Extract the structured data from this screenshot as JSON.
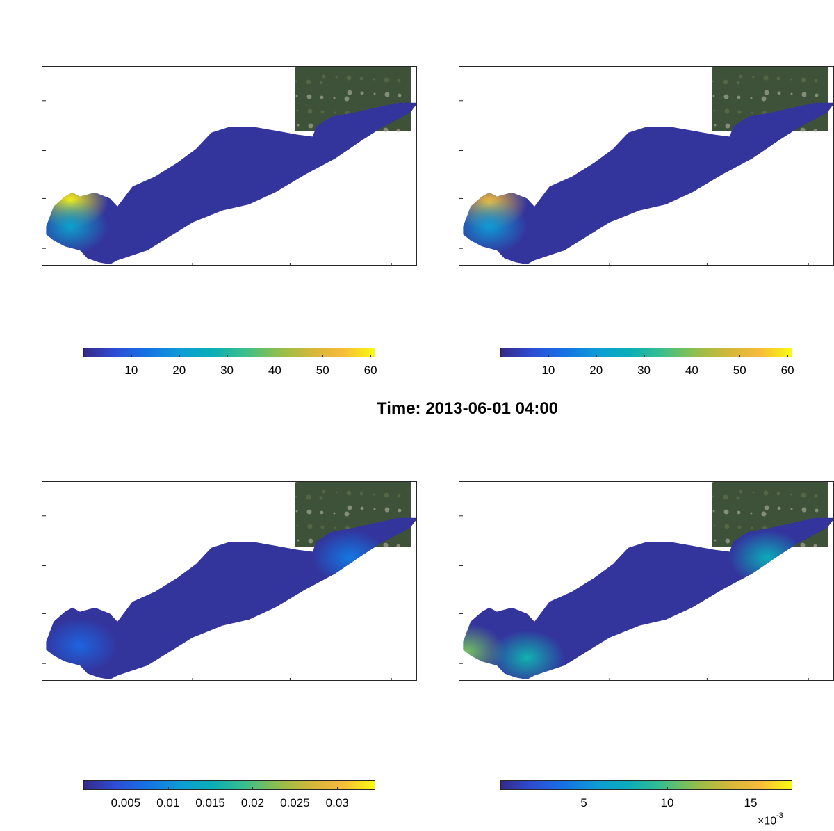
{
  "figure": {
    "title": "Time: 2013-06-01 04:00"
  },
  "colormap": [
    "#352a87",
    "#2c4fd6",
    "#1474e4",
    "#0e9dd5",
    "#0aafb5",
    "#3bbf8b",
    "#8fbf4d",
    "#cfb83a",
    "#f7ba3c",
    "#f9fb0e"
  ],
  "chart_data": [
    {
      "type": "heatmap",
      "panel": "top-left",
      "colorbar": {
        "min": 0,
        "max": 61,
        "ticks": [
          10,
          20,
          30,
          40,
          50,
          60
        ],
        "tick_labels": [
          "10",
          "20",
          "30",
          "40",
          "50",
          "60"
        ]
      },
      "hotspots": [
        {
          "x": 0.075,
          "y": 0.67,
          "value": 60
        },
        {
          "x": 0.075,
          "y": 0.8,
          "value": 22
        }
      ]
    },
    {
      "type": "heatmap",
      "panel": "top-right",
      "colorbar": {
        "min": 0,
        "max": 61,
        "ticks": [
          10,
          20,
          30,
          40,
          50,
          60
        ],
        "tick_labels": [
          "10",
          "20",
          "30",
          "40",
          "50",
          "60"
        ]
      },
      "hotspots": [
        {
          "x": 0.08,
          "y": 0.68,
          "value": 55
        },
        {
          "x": 0.08,
          "y": 0.8,
          "value": 20
        }
      ]
    },
    {
      "type": "heatmap",
      "panel": "bottom-left",
      "colorbar": {
        "min": 0,
        "max": 0.0345,
        "ticks": [
          0.005,
          0.01,
          0.015,
          0.02,
          0.025,
          0.03
        ],
        "tick_labels": [
          "0.005",
          "0.01",
          "0.015",
          "0.02",
          "0.025",
          "0.03"
        ]
      },
      "hotspots": [
        {
          "x": 0.82,
          "y": 0.38,
          "value": 0.008
        },
        {
          "x": 0.1,
          "y": 0.82,
          "value": 0.006
        }
      ]
    },
    {
      "type": "heatmap",
      "panel": "bottom-right",
      "colorbar": {
        "min": 0,
        "max": 0.0175,
        "ticks": [
          0.005,
          0.01,
          0.015
        ],
        "tick_labels": [
          "5",
          "10",
          "15"
        ],
        "multiplier": "×10",
        "exponent": "-3"
      },
      "hotspots": [
        {
          "x": 0.82,
          "y": 0.38,
          "value": 0.0075
        },
        {
          "x": 0.02,
          "y": 0.85,
          "value": 0.011
        },
        {
          "x": 0.18,
          "y": 0.88,
          "value": 0.008
        }
      ]
    }
  ]
}
